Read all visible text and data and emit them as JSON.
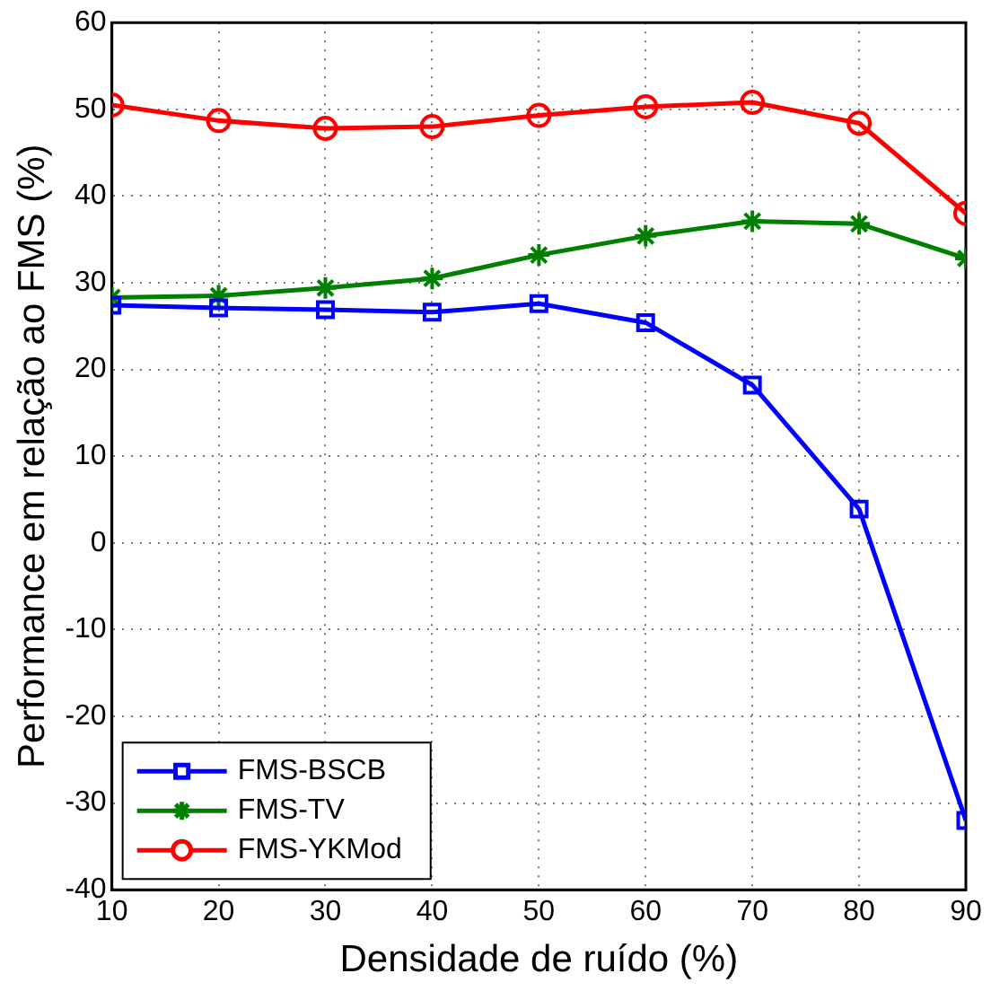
{
  "chart_data": {
    "type": "line",
    "xlabel": "Densidade de ruído (%)",
    "ylabel": "Performance em relação ao FMS (%)",
    "x": [
      10,
      20,
      30,
      40,
      50,
      60,
      70,
      80,
      90
    ],
    "xlim": [
      10,
      90
    ],
    "xticks": [
      10,
      20,
      30,
      40,
      50,
      60,
      70,
      80,
      90
    ],
    "ylim": [
      -40,
      60
    ],
    "yticks": [
      -40,
      -30,
      -20,
      -10,
      0,
      10,
      20,
      30,
      40,
      50,
      60
    ],
    "grid": true,
    "legend": "bottom left",
    "line_style": "solid",
    "series": [
      {
        "name": "FMS-BSCB",
        "color": "#0000ff",
        "marker": "square",
        "values": [
          27.4,
          27.1,
          26.9,
          26.6,
          27.6,
          25.4,
          18.2,
          3.9,
          -32
        ]
      },
      {
        "name": "FMS-TV",
        "color": "#008000",
        "marker": "cross",
        "values": [
          28.3,
          28.5,
          29.4,
          30.5,
          33.2,
          35.4,
          37.1,
          36.8,
          32.8
        ]
      },
      {
        "name": "FMS-YKMod",
        "color": "#ff0000",
        "marker": "circle",
        "values": [
          50.5,
          48.7,
          47.8,
          48,
          49.3,
          50.3,
          50.8,
          48.4,
          38
        ]
      }
    ]
  }
}
